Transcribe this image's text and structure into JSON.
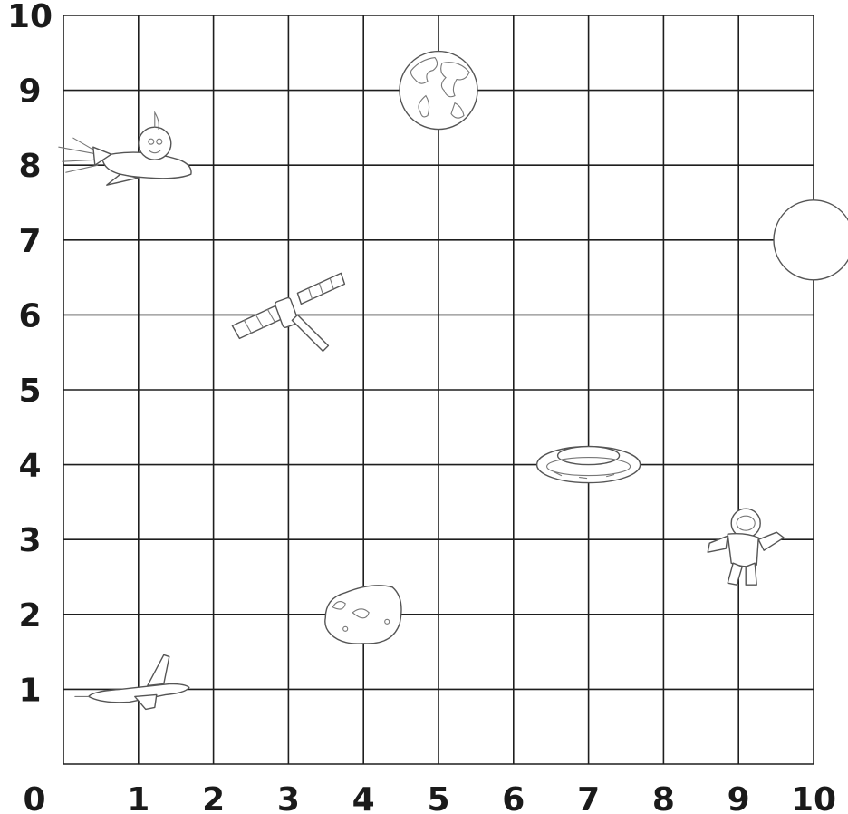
{
  "grid": {
    "x_min": 0,
    "x_max": 10,
    "y_min": 0,
    "y_max": 10
  },
  "labels": {
    "origin": "0",
    "x_ticks": [
      "1",
      "2",
      "3",
      "4",
      "5",
      "6",
      "7",
      "8",
      "9",
      "10"
    ],
    "y_ticks": [
      "1",
      "2",
      "3",
      "4",
      "5",
      "6",
      "7",
      "8",
      "9",
      "10"
    ]
  },
  "objects": [
    {
      "icon": "earth-icon",
      "x": 5,
      "y": 9
    },
    {
      "icon": "moon-icon",
      "x": 10,
      "y": 7
    },
    {
      "icon": "rocket-with-alien-icon",
      "x": 1,
      "y": 8
    },
    {
      "icon": "satellite-icon",
      "x": 3,
      "y": 6
    },
    {
      "icon": "ufo-icon",
      "x": 7,
      "y": 4
    },
    {
      "icon": "astronaut-icon",
      "x": 9,
      "y": 3
    },
    {
      "icon": "asteroid-icon",
      "x": 4,
      "y": 2
    },
    {
      "icon": "space-shuttle-icon",
      "x": 1,
      "y": 1
    }
  ],
  "colors": {
    "grid_line": "#1e1e1e",
    "label": "#1a1a1a",
    "sketch_outline": "#555555"
  }
}
